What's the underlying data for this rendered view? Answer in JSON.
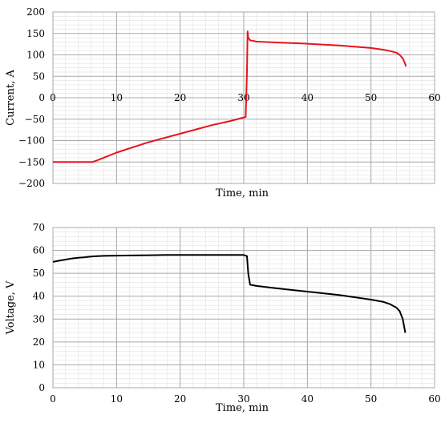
{
  "chart_data": [
    {
      "type": "line",
      "title": "",
      "xlabel": "Time, min",
      "ylabel": "Current, A",
      "xlim": [
        0,
        60
      ],
      "ylim": [
        -200,
        200
      ],
      "x_ticks": [
        "0",
        "10",
        "20",
        "30",
        "40",
        "50",
        "60"
      ],
      "y_ticks": [
        "200",
        "150",
        "100",
        "50",
        "0",
        "−50",
        "−100",
        "−150",
        "−200"
      ],
      "grid": true,
      "series": [
        {
          "color": "#e8141c",
          "x": [
            0,
            2,
            4,
            6.2,
            7,
            10,
            15,
            20,
            25,
            28,
            30,
            30.3,
            30.5,
            30.6,
            30.7,
            31,
            32,
            35,
            40,
            45,
            50,
            52,
            53,
            54,
            54.5,
            55,
            55.3,
            55.5
          ],
          "y": [
            -150,
            -150,
            -150,
            -150,
            -146,
            -128,
            -104,
            -84,
            -64,
            -54,
            -46,
            -45,
            60,
            155,
            140,
            134,
            131,
            129,
            126,
            122,
            116,
            112,
            109,
            105,
            100,
            92,
            82,
            73
          ]
        }
      ]
    },
    {
      "type": "line",
      "title": "",
      "xlabel": "Time, min",
      "ylabel": "Voltage, V",
      "xlim": [
        0,
        60
      ],
      "ylim": [
        0,
        70
      ],
      "x_ticks": [
        "0",
        "10",
        "20",
        "30",
        "40",
        "50",
        "60"
      ],
      "y_ticks": [
        "0",
        "10",
        "20",
        "30",
        "40",
        "50",
        "60",
        "70"
      ],
      "grid": true,
      "series": [
        {
          "color": "#000000",
          "x": [
            0,
            1,
            2,
            3,
            4,
            5,
            6,
            7,
            8,
            10,
            12,
            15,
            18,
            20,
            22,
            25,
            28,
            30,
            30.5,
            30.7,
            31,
            32,
            35,
            40,
            45,
            50,
            52,
            53,
            54,
            54.5,
            55,
            55.2,
            55.4
          ],
          "y": [
            55,
            55.5,
            56,
            56.5,
            56.8,
            57,
            57.3,
            57.5,
            57.6,
            57.7,
            57.8,
            57.9,
            58,
            58,
            58,
            58,
            58,
            58,
            57.5,
            50,
            45,
            44.5,
            43.5,
            42,
            40.5,
            38.5,
            37.5,
            36.5,
            35,
            33.5,
            30,
            27,
            24
          ]
        }
      ]
    }
  ]
}
